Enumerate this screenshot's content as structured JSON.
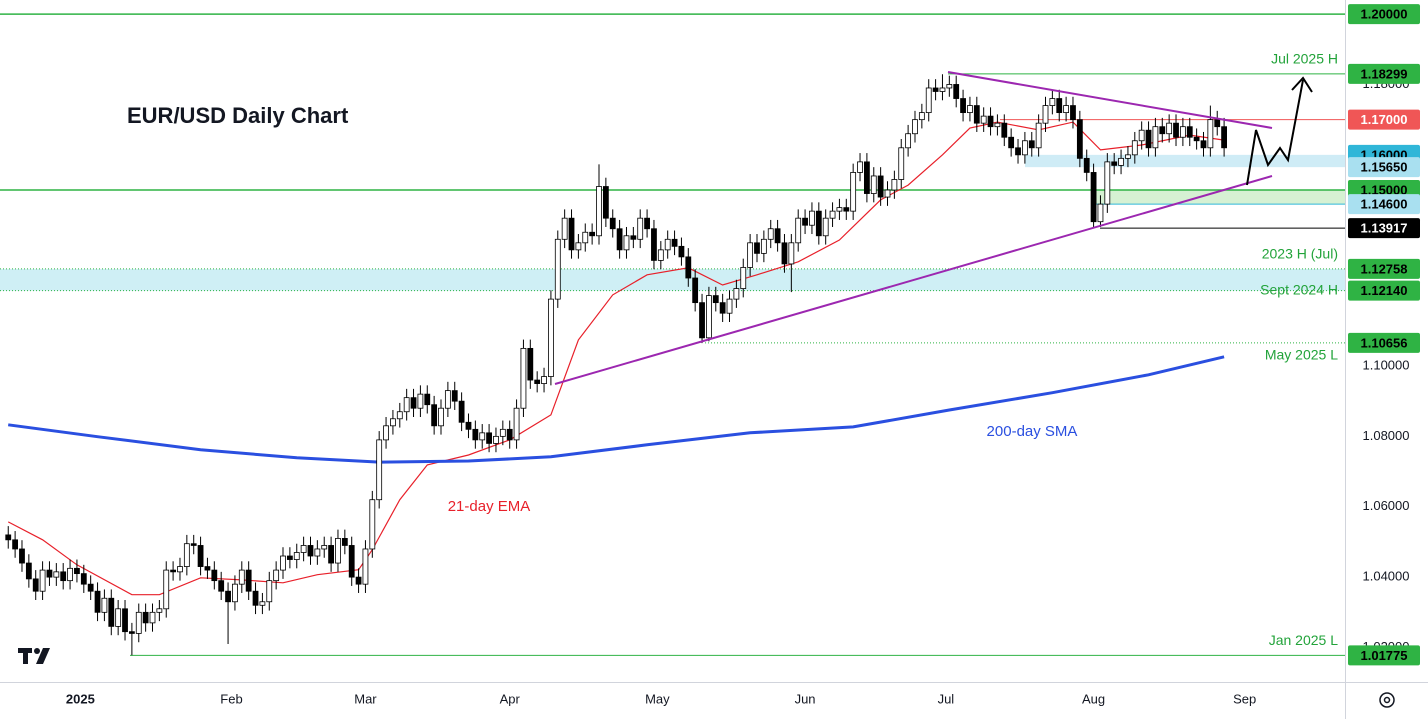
{
  "chart_data": {
    "type": "candlestick",
    "title": "EUR/USD Daily Chart",
    "ohlc": [
      [
        1.052,
        1.0545,
        1.0481,
        1.0506
      ],
      [
        1.0506,
        1.0531,
        1.0455,
        1.048
      ],
      [
        1.048,
        1.0505,
        1.0415,
        1.044
      ],
      [
        1.044,
        1.0465,
        1.037,
        1.0395
      ],
      [
        1.0395,
        1.042,
        1.0335,
        1.036
      ],
      [
        1.036,
        1.0445,
        1.0335,
        1.042
      ],
      [
        1.042,
        1.0445,
        1.0375,
        1.04
      ],
      [
        1.04,
        1.044,
        1.0375,
        1.0415
      ],
      [
        1.0415,
        1.044,
        1.0365,
        1.039
      ],
      [
        1.039,
        1.045,
        1.0365,
        1.0425
      ],
      [
        1.0425,
        1.045,
        1.0385,
        1.041
      ],
      [
        1.041,
        1.0435,
        1.0355,
        1.038
      ],
      [
        1.038,
        1.0405,
        1.0335,
        1.036
      ],
      [
        1.036,
        1.0385,
        1.0275,
        1.03
      ],
      [
        1.03,
        1.0365,
        1.0275,
        1.034
      ],
      [
        1.034,
        1.0365,
        1.0235,
        1.026
      ],
      [
        1.026,
        1.0335,
        1.0235,
        1.031
      ],
      [
        1.031,
        1.0335,
        1.022,
        1.0245
      ],
      [
        1.0245,
        1.027,
        1.0178,
        1.024
      ],
      [
        1.024,
        1.0325,
        1.0215,
        1.03
      ],
      [
        1.03,
        1.0325,
        1.0245,
        1.027
      ],
      [
        1.027,
        1.0325,
        1.0245,
        1.03
      ],
      [
        1.03,
        1.0335,
        1.0275,
        1.031
      ],
      [
        1.031,
        1.0445,
        1.0285,
        1.042
      ],
      [
        1.042,
        1.0445,
        1.039,
        1.0415
      ],
      [
        1.0415,
        1.0455,
        1.039,
        1.043
      ],
      [
        1.043,
        1.052,
        1.0405,
        1.0495
      ],
      [
        1.0495,
        1.052,
        1.0465,
        1.049
      ],
      [
        1.049,
        1.0515,
        1.0405,
        1.043
      ],
      [
        1.043,
        1.0455,
        1.0395,
        1.042
      ],
      [
        1.042,
        1.0445,
        1.0365,
        1.039
      ],
      [
        1.039,
        1.0415,
        1.0335,
        1.036
      ],
      [
        1.036,
        1.0385,
        1.021,
        1.033
      ],
      [
        1.033,
        1.0405,
        1.0305,
        1.038
      ],
      [
        1.038,
        1.0445,
        1.0355,
        1.042
      ],
      [
        1.042,
        1.0445,
        1.0335,
        1.036
      ],
      [
        1.036,
        1.0385,
        1.0295,
        1.032
      ],
      [
        1.032,
        1.0355,
        1.0295,
        1.033
      ],
      [
        1.033,
        1.0415,
        1.0305,
        1.039
      ],
      [
        1.039,
        1.0445,
        1.0365,
        1.042
      ],
      [
        1.042,
        1.0485,
        1.0395,
        1.046
      ],
      [
        1.046,
        1.0485,
        1.0425,
        1.045
      ],
      [
        1.045,
        1.0495,
        1.0425,
        1.047
      ],
      [
        1.047,
        1.0515,
        1.0445,
        1.049
      ],
      [
        1.049,
        1.0515,
        1.0435,
        1.046
      ],
      [
        1.046,
        1.0505,
        1.0435,
        1.048
      ],
      [
        1.048,
        1.0515,
        1.0455,
        1.049
      ],
      [
        1.049,
        1.0515,
        1.0415,
        1.044
      ],
      [
        1.044,
        1.0535,
        1.0415,
        1.051
      ],
      [
        1.051,
        1.0535,
        1.0465,
        1.049
      ],
      [
        1.049,
        1.0515,
        1.0375,
        1.04
      ],
      [
        1.04,
        1.0425,
        1.0355,
        1.038
      ],
      [
        1.038,
        1.0505,
        1.0355,
        1.048
      ],
      [
        1.048,
        1.0645,
        1.0455,
        1.062
      ],
      [
        1.062,
        1.0815,
        1.0595,
        1.079
      ],
      [
        1.079,
        1.0855,
        1.0765,
        1.083
      ],
      [
        1.083,
        1.0875,
        1.0805,
        1.085
      ],
      [
        1.085,
        1.0895,
        1.0825,
        1.087
      ],
      [
        1.087,
        1.0935,
        1.0845,
        1.091
      ],
      [
        1.091,
        1.0935,
        1.0855,
        1.088
      ],
      [
        1.088,
        1.0945,
        1.0855,
        1.092
      ],
      [
        1.092,
        1.0945,
        1.0865,
        1.089
      ],
      [
        1.089,
        1.0915,
        1.0805,
        1.083
      ],
      [
        1.083,
        1.0905,
        1.0805,
        1.088
      ],
      [
        1.088,
        1.0955,
        1.0855,
        1.093
      ],
      [
        1.093,
        1.0955,
        1.0875,
        1.09
      ],
      [
        1.09,
        1.0925,
        1.0815,
        1.084
      ],
      [
        1.084,
        1.0865,
        1.0795,
        1.082
      ],
      [
        1.082,
        1.0845,
        1.0765,
        1.079
      ],
      [
        1.079,
        1.0835,
        1.0765,
        1.081
      ],
      [
        1.081,
        1.0835,
        1.0755,
        1.078
      ],
      [
        1.078,
        1.0825,
        1.0755,
        1.08
      ],
      [
        1.08,
        1.0845,
        1.0775,
        1.082
      ],
      [
        1.082,
        1.0845,
        1.0765,
        1.079
      ],
      [
        1.079,
        1.0905,
        1.0765,
        1.088
      ],
      [
        1.088,
        1.1075,
        1.0855,
        1.105
      ],
      [
        1.105,
        1.1075,
        1.0935,
        1.096
      ],
      [
        1.096,
        1.0985,
        1.0925,
        1.095
      ],
      [
        1.095,
        1.0995,
        1.0925,
        1.097
      ],
      [
        1.097,
        1.1215,
        1.0945,
        1.119
      ],
      [
        1.119,
        1.1385,
        1.1165,
        1.136
      ],
      [
        1.136,
        1.1445,
        1.1335,
        1.142
      ],
      [
        1.142,
        1.1445,
        1.1305,
        1.133
      ],
      [
        1.133,
        1.1375,
        1.1305,
        1.135
      ],
      [
        1.135,
        1.1405,
        1.1325,
        1.138
      ],
      [
        1.138,
        1.1405,
        1.1345,
        1.137
      ],
      [
        1.137,
        1.1573,
        1.1345,
        1.151
      ],
      [
        1.151,
        1.1535,
        1.1395,
        1.142
      ],
      [
        1.142,
        1.1445,
        1.1365,
        1.139
      ],
      [
        1.139,
        1.1415,
        1.1305,
        1.133
      ],
      [
        1.133,
        1.1395,
        1.1305,
        1.137
      ],
      [
        1.137,
        1.1395,
        1.1335,
        1.136
      ],
      [
        1.136,
        1.1445,
        1.1335,
        1.142
      ],
      [
        1.142,
        1.1445,
        1.1365,
        1.139
      ],
      [
        1.139,
        1.1415,
        1.1275,
        1.13
      ],
      [
        1.13,
        1.1355,
        1.1275,
        1.133
      ],
      [
        1.133,
        1.1385,
        1.1305,
        1.136
      ],
      [
        1.136,
        1.1385,
        1.1315,
        1.134
      ],
      [
        1.134,
        1.1365,
        1.1285,
        1.131
      ],
      [
        1.131,
        1.1335,
        1.1225,
        1.125
      ],
      [
        1.125,
        1.1275,
        1.1155,
        1.118
      ],
      [
        1.118,
        1.1205,
        1.1065,
        1.108
      ],
      [
        1.108,
        1.1225,
        1.107,
        1.12
      ],
      [
        1.12,
        1.1225,
        1.1155,
        1.118
      ],
      [
        1.118,
        1.1205,
        1.1125,
        1.115
      ],
      [
        1.115,
        1.1215,
        1.1125,
        1.119
      ],
      [
        1.119,
        1.1245,
        1.1165,
        1.122
      ],
      [
        1.122,
        1.1305,
        1.1195,
        1.128
      ],
      [
        1.128,
        1.1375,
        1.1255,
        1.135
      ],
      [
        1.135,
        1.1375,
        1.1295,
        1.132
      ],
      [
        1.132,
        1.1385,
        1.1295,
        1.136
      ],
      [
        1.136,
        1.1415,
        1.1335,
        1.139
      ],
      [
        1.139,
        1.1415,
        1.1325,
        1.135
      ],
      [
        1.135,
        1.1375,
        1.1265,
        1.129
      ],
      [
        1.129,
        1.1375,
        1.121,
        1.135
      ],
      [
        1.135,
        1.1445,
        1.1325,
        1.142
      ],
      [
        1.142,
        1.1445,
        1.1375,
        1.14
      ],
      [
        1.14,
        1.1465,
        1.1375,
        1.144
      ],
      [
        1.144,
        1.1465,
        1.1345,
        1.137
      ],
      [
        1.137,
        1.1445,
        1.1345,
        1.142
      ],
      [
        1.142,
        1.1465,
        1.1395,
        1.144
      ],
      [
        1.144,
        1.1475,
        1.1415,
        1.145
      ],
      [
        1.145,
        1.1475,
        1.1415,
        1.144
      ],
      [
        1.144,
        1.1575,
        1.1415,
        1.155
      ],
      [
        1.155,
        1.1605,
        1.1525,
        1.158
      ],
      [
        1.158,
        1.1605,
        1.1465,
        1.149
      ],
      [
        1.149,
        1.1565,
        1.1465,
        1.154
      ],
      [
        1.154,
        1.1565,
        1.1455,
        1.148
      ],
      [
        1.148,
        1.1525,
        1.1455,
        1.15
      ],
      [
        1.15,
        1.1555,
        1.1475,
        1.153
      ],
      [
        1.153,
        1.1645,
        1.1505,
        1.162
      ],
      [
        1.162,
        1.1685,
        1.1595,
        1.166
      ],
      [
        1.166,
        1.1725,
        1.1635,
        1.17
      ],
      [
        1.17,
        1.1745,
        1.1675,
        1.172
      ],
      [
        1.172,
        1.1815,
        1.1695,
        1.179
      ],
      [
        1.179,
        1.1815,
        1.1755,
        1.178
      ],
      [
        1.178,
        1.1829,
        1.1755,
        1.179
      ],
      [
        1.179,
        1.1825,
        1.1765,
        1.18
      ],
      [
        1.18,
        1.1825,
        1.1735,
        1.176
      ],
      [
        1.176,
        1.1785,
        1.1695,
        1.172
      ],
      [
        1.172,
        1.1765,
        1.1695,
        1.174
      ],
      [
        1.174,
        1.1765,
        1.1665,
        1.169
      ],
      [
        1.169,
        1.1735,
        1.1665,
        1.171
      ],
      [
        1.171,
        1.1735,
        1.1655,
        1.168
      ],
      [
        1.168,
        1.1715,
        1.1655,
        1.169
      ],
      [
        1.169,
        1.1715,
        1.1625,
        1.165
      ],
      [
        1.165,
        1.1675,
        1.1595,
        1.162
      ],
      [
        1.162,
        1.1645,
        1.1575,
        1.16
      ],
      [
        1.16,
        1.1665,
        1.1575,
        1.164
      ],
      [
        1.164,
        1.1665,
        1.1595,
        1.162
      ],
      [
        1.162,
        1.1715,
        1.1595,
        1.169
      ],
      [
        1.169,
        1.1765,
        1.1665,
        1.174
      ],
      [
        1.174,
        1.1785,
        1.1715,
        1.176
      ],
      [
        1.176,
        1.1785,
        1.1695,
        1.172
      ],
      [
        1.172,
        1.1765,
        1.1695,
        1.174
      ],
      [
        1.174,
        1.1765,
        1.1675,
        1.17
      ],
      [
        1.17,
        1.1725,
        1.1565,
        1.159
      ],
      [
        1.159,
        1.1615,
        1.1525,
        1.155
      ],
      [
        1.155,
        1.1575,
        1.1392,
        1.141
      ],
      [
        1.141,
        1.1485,
        1.1395,
        1.146
      ],
      [
        1.146,
        1.1605,
        1.1435,
        1.158
      ],
      [
        1.158,
        1.1605,
        1.1545,
        1.157
      ],
      [
        1.157,
        1.1615,
        1.1545,
        1.159
      ],
      [
        1.159,
        1.1625,
        1.1565,
        1.16
      ],
      [
        1.16,
        1.1665,
        1.1575,
        1.164
      ],
      [
        1.164,
        1.1695,
        1.1615,
        1.167
      ],
      [
        1.167,
        1.1695,
        1.1595,
        1.162
      ],
      [
        1.162,
        1.1705,
        1.1595,
        1.168
      ],
      [
        1.168,
        1.1705,
        1.1635,
        1.166
      ],
      [
        1.166,
        1.1715,
        1.1635,
        1.169
      ],
      [
        1.169,
        1.1715,
        1.1625,
        1.165
      ],
      [
        1.165,
        1.1705,
        1.1625,
        1.168
      ],
      [
        1.168,
        1.1705,
        1.1625,
        1.165
      ],
      [
        1.165,
        1.1675,
        1.1615,
        1.164
      ],
      [
        1.164,
        1.1665,
        1.1595,
        1.162
      ],
      [
        1.162,
        1.174,
        1.1595,
        1.17
      ],
      [
        1.17,
        1.1725,
        1.1655,
        1.168
      ],
      [
        1.168,
        1.1705,
        1.1595,
        1.162
      ]
    ],
    "up_color": "#ffffff",
    "down_color": "#000000",
    "xlim": [
      -1.2,
      194.6
    ],
    "xticks": [
      {
        "value": 10.5,
        "label": "2025"
      },
      {
        "value": 32.5,
        "label": "Feb"
      },
      {
        "value": 52,
        "label": "Mar"
      },
      {
        "value": 73,
        "label": "Apr"
      },
      {
        "value": 94.5,
        "label": "May"
      },
      {
        "value": 116,
        "label": "Jun"
      },
      {
        "value": 136.5,
        "label": "Jul"
      },
      {
        "value": 158,
        "label": "Aug"
      },
      {
        "value": 180,
        "label": "Sep"
      }
    ],
    "ylim": [
      1.0102,
      1.204
    ],
    "yticks": [
      {
        "value": 1.02,
        "label": "1.02000"
      },
      {
        "value": 1.04,
        "label": "1.04000"
      },
      {
        "value": 1.06,
        "label": "1.06000"
      },
      {
        "value": 1.08,
        "label": "1.08000"
      },
      {
        "value": 1.1,
        "label": "1.10000"
      },
      {
        "value": 1.18,
        "label": "1.18000"
      }
    ],
    "series": [
      {
        "name": "21-day EMA",
        "color": "#e8202a",
        "x": [
          0,
          5,
          10,
          18,
          22,
          28,
          34,
          40,
          45,
          51,
          53,
          57,
          61,
          67,
          73,
          79,
          83,
          88,
          93,
          99,
          104,
          109,
          115,
          121,
          127,
          131,
          136,
          140,
          144,
          150,
          155,
          159,
          165,
          172,
          177
        ],
        "values": [
          1.0557,
          1.0506,
          1.0435,
          1.035,
          1.035,
          1.0398,
          1.0392,
          1.0384,
          1.0407,
          1.0421,
          1.0478,
          1.062,
          1.0719,
          1.0747,
          1.079,
          1.0861,
          1.1074,
          1.1202,
          1.1259,
          1.1279,
          1.123,
          1.1259,
          1.1296,
          1.1358,
          1.1472,
          1.1514,
          1.16,
          1.1676,
          1.1693,
          1.1671,
          1.1693,
          1.1614,
          1.1628,
          1.1656,
          1.1642
        ]
      },
      {
        "name": "200-day SMA",
        "color": "#2a4fe0",
        "x": [
          0,
          13,
          28,
          42,
          54,
          67,
          79,
          93,
          108,
          123,
          137,
          152,
          166,
          177
        ],
        "values": [
          1.0833,
          1.0799,
          1.0762,
          1.0739,
          1.0727,
          1.073,
          1.0742,
          1.0776,
          1.081,
          1.0827,
          1.0875,
          1.0924,
          1.0975,
          1.1026
        ]
      }
    ],
    "levels": [
      {
        "value": 1.2,
        "label": "1.20000",
        "color": "#2fb344",
        "text_color": "#000000",
        "style": "solid"
      },
      {
        "value": 1.18299,
        "label": "1.18299",
        "color": "#2fb344",
        "text_color": "#000000",
        "style": "solid"
      },
      {
        "value": 1.17,
        "label": "1.17000",
        "color": "#f05656",
        "text_color": "#ffffff",
        "style": "solid"
      },
      {
        "value": 1.16,
        "label": "1.16000",
        "color": "#2fb6d8",
        "text_color": "#000000",
        "style": "none"
      },
      {
        "value": 1.1565,
        "label": "1.15650",
        "color": "#a9e0f0",
        "text_color": "#000000",
        "style": "none"
      },
      {
        "value": 1.15,
        "label": "1.15000",
        "color": "#2fb344",
        "text_color": "#000000",
        "style": "solid"
      },
      {
        "value": 1.146,
        "label": "1.14600",
        "color": "#a9e0f0",
        "text_color": "#000000",
        "style": "solid"
      },
      {
        "value": 1.13917,
        "label": "1.13917",
        "color": "#000000",
        "text_color": "#ffffff",
        "style": "solid"
      },
      {
        "value": 1.12758,
        "label": "1.12758",
        "color": "#2fb344",
        "text_color": "#000000",
        "style": "dotted"
      },
      {
        "value": 1.1214,
        "label": "1.12140",
        "color": "#2fb344",
        "text_color": "#000000",
        "style": "dotted"
      },
      {
        "value": 1.10656,
        "label": "1.10656",
        "color": "#2fb344",
        "text_color": "#000000",
        "style": "dotted"
      },
      {
        "value": 1.01775,
        "label": "1.01775",
        "color": "#2fb344",
        "text_color": "#000000",
        "style": "solid"
      }
    ],
    "zones": [
      {
        "from": 1.1565,
        "to": 1.16,
        "color": "#bfe6f3"
      },
      {
        "from": 1.146,
        "to": 1.15,
        "color": "#c8ecc4"
      },
      {
        "from": 1.1214,
        "to": 1.12758,
        "color": "#bfe9f2"
      }
    ],
    "annotations": [
      {
        "text": "Jul 2025 H",
        "value": 1.18299
      },
      {
        "text": "2023 H (Jul)",
        "value": 1.12758
      },
      {
        "text": "Sept 2024 H",
        "value": 1.1214
      },
      {
        "text": "May 2025 L",
        "value": 1.10656
      },
      {
        "text": "Jan 2025 L",
        "value": 1.01775
      }
    ]
  }
}
